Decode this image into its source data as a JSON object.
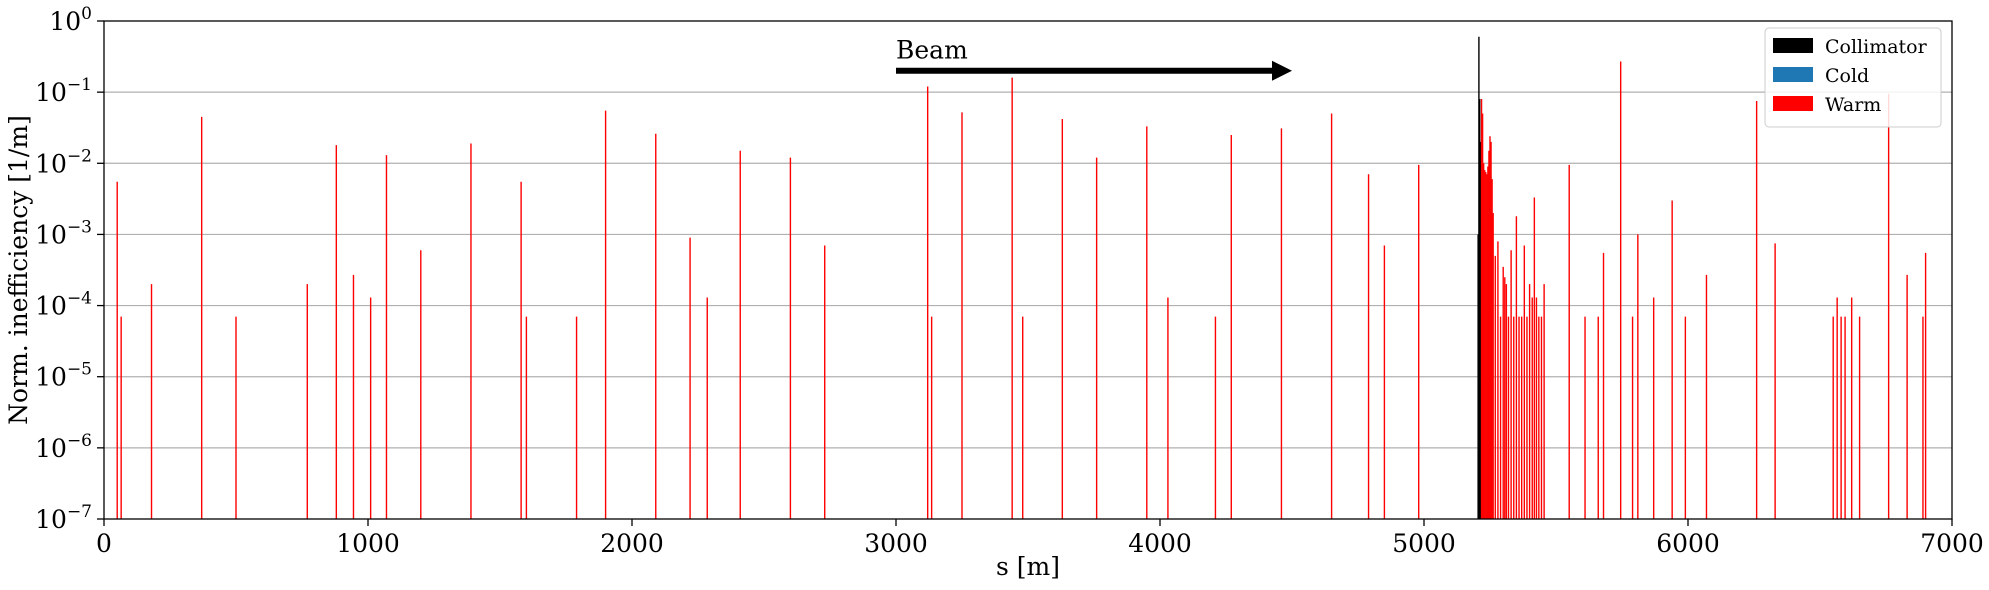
{
  "chart_data": {
    "type": "bar",
    "title": "",
    "xlabel": "s [m]",
    "ylabel": "Norm. inefficiency [1/m]",
    "xlim": [
      0,
      7000
    ],
    "ylim": [
      1e-07,
      1
    ],
    "yscale": "log",
    "grid": "y-major",
    "legend_position": "top-right",
    "x_ticks": [
      {
        "value": 0,
        "label": "0"
      },
      {
        "value": 1000,
        "label": "1000"
      },
      {
        "value": 2000,
        "label": "2000"
      },
      {
        "value": 3000,
        "label": "3000"
      },
      {
        "value": 4000,
        "label": "4000"
      },
      {
        "value": 5000,
        "label": "5000"
      },
      {
        "value": 6000,
        "label": "6000"
      },
      {
        "value": 7000,
        "label": "7000"
      }
    ],
    "y_ticks": [
      {
        "value": 1e-07,
        "base": "10",
        "exp": "−7"
      },
      {
        "value": 1e-06,
        "base": "10",
        "exp": "−6"
      },
      {
        "value": 1e-05,
        "base": "10",
        "exp": "−5"
      },
      {
        "value": 0.0001,
        "base": "10",
        "exp": "−4"
      },
      {
        "value": 0.001,
        "base": "10",
        "exp": "−3"
      },
      {
        "value": 0.01,
        "base": "10",
        "exp": "−2"
      },
      {
        "value": 0.1,
        "base": "10",
        "exp": "−1"
      },
      {
        "value": 1,
        "base": "10",
        "exp": "0"
      }
    ],
    "legend": [
      {
        "label": "Collimator",
        "color": "#000000"
      },
      {
        "label": "Cold",
        "color": "#1f77b4"
      },
      {
        "label": "Warm",
        "color": "#ff0000"
      }
    ],
    "annotation": {
      "text": "Beam",
      "arrow_from_x": 3000,
      "arrow_to_x": 4500,
      "arrow_y": 0.2
    },
    "series": [
      {
        "name": "Collimator",
        "color": "#000000",
        "points": [
          {
            "s": 5205,
            "value": 0.001
          },
          {
            "s": 5208,
            "value": 0.6
          },
          {
            "s": 5211,
            "value": 0.08
          },
          {
            "s": 5214,
            "value": 0.02
          }
        ]
      },
      {
        "name": "Cold",
        "color": "#1f77b4",
        "points": []
      },
      {
        "name": "Warm",
        "color": "#ff0000",
        "points": [
          {
            "s": 50,
            "value": 0.0055
          },
          {
            "s": 65,
            "value": 7e-05
          },
          {
            "s": 180,
            "value": 0.0002
          },
          {
            "s": 370,
            "value": 0.045
          },
          {
            "s": 500,
            "value": 7e-05
          },
          {
            "s": 770,
            "value": 0.0002
          },
          {
            "s": 880,
            "value": 0.018
          },
          {
            "s": 945,
            "value": 0.00027
          },
          {
            "s": 1010,
            "value": 0.00013
          },
          {
            "s": 1070,
            "value": 0.013
          },
          {
            "s": 1200,
            "value": 0.0006
          },
          {
            "s": 1390,
            "value": 0.019
          },
          {
            "s": 1580,
            "value": 0.0055
          },
          {
            "s": 1600,
            "value": 7e-05
          },
          {
            "s": 1790,
            "value": 7e-05
          },
          {
            "s": 1900,
            "value": 0.055
          },
          {
            "s": 2090,
            "value": 0.026
          },
          {
            "s": 2220,
            "value": 0.0009
          },
          {
            "s": 2285,
            "value": 0.00013
          },
          {
            "s": 2410,
            "value": 0.015
          },
          {
            "s": 2600,
            "value": 0.012
          },
          {
            "s": 2730,
            "value": 0.0007
          },
          {
            "s": 3120,
            "value": 0.12
          },
          {
            "s": 3135,
            "value": 7e-05
          },
          {
            "s": 3250,
            "value": 0.052
          },
          {
            "s": 3440,
            "value": 0.16
          },
          {
            "s": 3480,
            "value": 7e-05
          },
          {
            "s": 3630,
            "value": 0.042
          },
          {
            "s": 3760,
            "value": 0.012
          },
          {
            "s": 3950,
            "value": 0.033
          },
          {
            "s": 4030,
            "value": 0.00013
          },
          {
            "s": 4210,
            "value": 7e-05
          },
          {
            "s": 4270,
            "value": 0.025
          },
          {
            "s": 4460,
            "value": 0.031
          },
          {
            "s": 4650,
            "value": 0.05
          },
          {
            "s": 4790,
            "value": 0.007
          },
          {
            "s": 4850,
            "value": 0.0007
          },
          {
            "s": 4980,
            "value": 0.0095
          },
          {
            "s": 5218,
            "value": 0.08
          },
          {
            "s": 5222,
            "value": 0.05
          },
          {
            "s": 5226,
            "value": 0.01
          },
          {
            "s": 5230,
            "value": 0.008
          },
          {
            "s": 5234,
            "value": 0.0075
          },
          {
            "s": 5238,
            "value": 0.007
          },
          {
            "s": 5242,
            "value": 0.009
          },
          {
            "s": 5246,
            "value": 0.015
          },
          {
            "s": 5250,
            "value": 0.024
          },
          {
            "s": 5254,
            "value": 0.02
          },
          {
            "s": 5258,
            "value": 0.006
          },
          {
            "s": 5262,
            "value": 0.002
          },
          {
            "s": 5270,
            "value": 0.0005
          },
          {
            "s": 5280,
            "value": 0.0008
          },
          {
            "s": 5290,
            "value": 7e-05
          },
          {
            "s": 5300,
            "value": 0.00035
          },
          {
            "s": 5306,
            "value": 0.00025
          },
          {
            "s": 5312,
            "value": 0.0002
          },
          {
            "s": 5320,
            "value": 7e-05
          },
          {
            "s": 5330,
            "value": 0.0006
          },
          {
            "s": 5340,
            "value": 7e-05
          },
          {
            "s": 5350,
            "value": 0.0018
          },
          {
            "s": 5360,
            "value": 7e-05
          },
          {
            "s": 5370,
            "value": 7e-05
          },
          {
            "s": 5380,
            "value": 0.0007
          },
          {
            "s": 5390,
            "value": 7e-05
          },
          {
            "s": 5400,
            "value": 0.0002
          },
          {
            "s": 5410,
            "value": 0.00013
          },
          {
            "s": 5418,
            "value": 0.0033
          },
          {
            "s": 5426,
            "value": 0.00013
          },
          {
            "s": 5435,
            "value": 7e-05
          },
          {
            "s": 5445,
            "value": 7e-05
          },
          {
            "s": 5455,
            "value": 0.0002
          },
          {
            "s": 5550,
            "value": 0.0095
          },
          {
            "s": 5610,
            "value": 7e-05
          },
          {
            "s": 5660,
            "value": 7e-05
          },
          {
            "s": 5680,
            "value": 0.00055
          },
          {
            "s": 5745,
            "value": 0.27
          },
          {
            "s": 5790,
            "value": 7e-05
          },
          {
            "s": 5810,
            "value": 0.001
          },
          {
            "s": 5870,
            "value": 0.00013
          },
          {
            "s": 5940,
            "value": 0.003
          },
          {
            "s": 5990,
            "value": 7e-05
          },
          {
            "s": 6070,
            "value": 0.00027
          },
          {
            "s": 6260,
            "value": 0.075
          },
          {
            "s": 6330,
            "value": 0.00075
          },
          {
            "s": 6550,
            "value": 7e-05
          },
          {
            "s": 6565,
            "value": 0.00013
          },
          {
            "s": 6580,
            "value": 7e-05
          },
          {
            "s": 6595,
            "value": 7e-05
          },
          {
            "s": 6620,
            "value": 0.00013
          },
          {
            "s": 6650,
            "value": 7e-05
          },
          {
            "s": 6760,
            "value": 0.095
          },
          {
            "s": 6830,
            "value": 0.00027
          },
          {
            "s": 6890,
            "value": 7e-05
          },
          {
            "s": 6900,
            "value": 0.00055
          }
        ]
      }
    ]
  }
}
